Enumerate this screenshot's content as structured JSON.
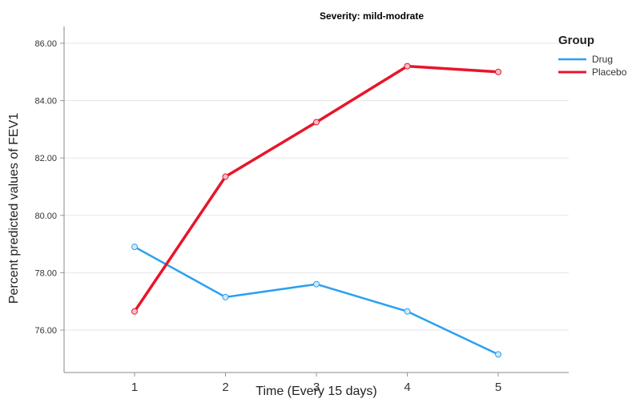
{
  "chart_data": {
    "type": "line",
    "title": "Severity: mild-modrate",
    "xlabel": "Time (Every 15 days)",
    "ylabel": "Percent predicted values of FEV1",
    "categories": [
      "1",
      "2",
      "3",
      "4",
      "5"
    ],
    "y_ticks": [
      "76.00",
      "78.00",
      "80.00",
      "82.00",
      "84.00",
      "86.00"
    ],
    "ylim": [
      75,
      86.5
    ],
    "grid": true,
    "legend": {
      "title": "Group",
      "position": "right"
    },
    "series": [
      {
        "name": "Drug",
        "color": "#2aa0f0",
        "values": [
          78.9,
          77.15,
          77.6,
          76.65,
          75.15
        ]
      },
      {
        "name": "Placebo",
        "color": "#e8152b",
        "values": [
          76.65,
          81.35,
          83.25,
          85.2,
          85.0
        ]
      }
    ]
  }
}
